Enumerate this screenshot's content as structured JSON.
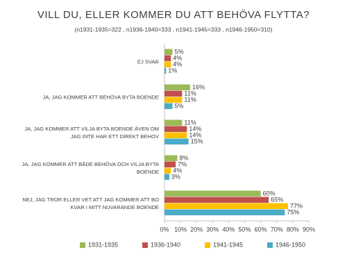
{
  "chart_data": {
    "type": "hbar",
    "title": "VILL DU, ELLER KOMMER DU ATT BEHÖVA FLYTTA?",
    "subtitle": "(n1931-1935=322 , n1936-1940=333 , n1941-1945=333 , n1946-1950=310)",
    "categories": [
      "EJ SVAR",
      "JA, JAG KOMMER ATT BEHÖVA BYTA BOENDE",
      "JA, JAG KOMMER ATT VILJA BYTA BOENDE ÄVEN OM JAG INTE HAR ETT DIREKT BEHOV",
      "JA, JAG KOMMER ATT BÅDE BEHÖVA OCH VILJA BYTA BOENDE",
      "NEJ, JAG TROR ELLER VET ATT JAG KOMMER ATT BO KVAR I MITT NUVARANDE BOENDE"
    ],
    "series": [
      {
        "name": "1931-1935",
        "color": "#9bbb59",
        "values": [
          5,
          16,
          11,
          8,
          60
        ],
        "value_labels": [
          "5%",
          "16%",
          "11%",
          "8%",
          "60%"
        ]
      },
      {
        "name": "1936-1940",
        "color": "#c0504d",
        "values": [
          4,
          11,
          14,
          7,
          65
        ],
        "value_labels": [
          "4%",
          "11%",
          "14%",
          "7%",
          "65%"
        ]
      },
      {
        "name": "1941-1945",
        "color": "#ffc000",
        "values": [
          4,
          11,
          14,
          4,
          77
        ],
        "value_labels": [
          "4%",
          "11%",
          "14%",
          "4%",
          "77%"
        ]
      },
      {
        "name": "1946-1950",
        "color": "#4bacc6",
        "values": [
          1,
          5,
          15,
          3,
          75
        ],
        "value_labels": [
          "1%",
          "5%",
          "15%",
          "3%",
          "75%"
        ]
      }
    ],
    "xlim": [
      0,
      90
    ],
    "xticks": [
      {
        "value": 0,
        "label": "0%"
      },
      {
        "value": 10,
        "label": "10%"
      },
      {
        "value": 20,
        "label": "20%"
      },
      {
        "value": 30,
        "label": "30%"
      },
      {
        "value": 40,
        "label": "40%"
      },
      {
        "value": 50,
        "label": "50%"
      },
      {
        "value": 60,
        "label": "60%"
      },
      {
        "value": 70,
        "label": "70%"
      },
      {
        "value": 80,
        "label": "80%"
      },
      {
        "value": 90,
        "label": "90%"
      }
    ],
    "legend": "bottom"
  }
}
